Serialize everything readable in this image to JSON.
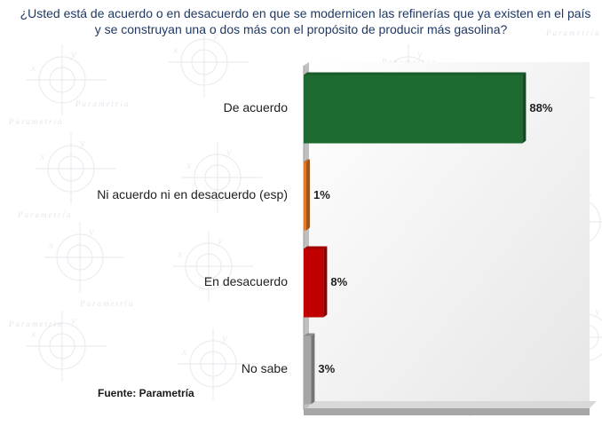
{
  "title": {
    "line1": "¿Usted está de acuerdo o en desacuerdo en que se modernicen las refinerías que ya existen en el país",
    "line2": "y se construyan una o dos más con el propósito de producir más gasolina?"
  },
  "source": "Fuente: Parametría",
  "watermark_text": "Parametría",
  "chart_data": {
    "type": "bar",
    "orientation": "horizontal",
    "title": "¿Usted está de acuerdo o en desacuerdo en que se modernicen las refinerías que ya existen en el país y se construyan una o dos más con el propósito de producir más gasolina?",
    "categories": [
      "De acuerdo",
      "Ni acuerdo ni en desacuerdo (esp)",
      "En desacuerdo",
      "No sabe"
    ],
    "values": [
      88,
      1,
      8,
      3
    ],
    "value_labels": [
      "88%",
      "1%",
      "8%",
      "3%"
    ],
    "colors": [
      "#1e6b32",
      "#e07b2a",
      "#c00000",
      "#a6a6a6"
    ],
    "xlim": [
      0,
      100
    ],
    "unit": "%",
    "grid": false,
    "legend": "none"
  }
}
